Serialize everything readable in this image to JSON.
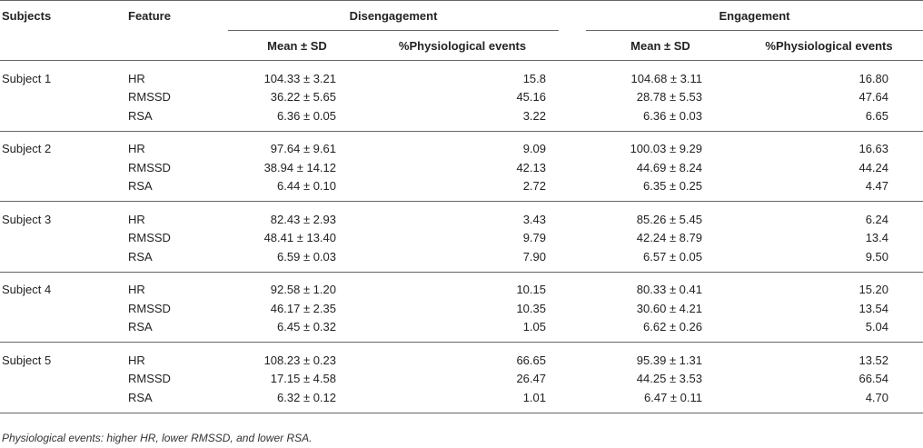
{
  "header": {
    "subjects": "Subjects",
    "feature": "Feature",
    "disengagement": "Disengagement",
    "engagement": "Engagement",
    "mean_sd": "Mean ± SD",
    "pct_events": "%Physiological events"
  },
  "groups": [
    {
      "subject": "Subject 1",
      "rows": [
        {
          "feature": "HR",
          "dis_mean": "104.33 ± 3.21",
          "dis_pct": "15.8",
          "eng_mean": "104.68 ± 3.11",
          "eng_pct": "16.80"
        },
        {
          "feature": "RMSSD",
          "dis_mean": "36.22 ± 5.65",
          "dis_pct": "45.16",
          "eng_mean": "28.78 ± 5.53",
          "eng_pct": "47.64"
        },
        {
          "feature": "RSA",
          "dis_mean": "6.36 ± 0.05",
          "dis_pct": "3.22",
          "eng_mean": "6.36 ± 0.03",
          "eng_pct": "6.65"
        }
      ]
    },
    {
      "subject": "Subject 2",
      "rows": [
        {
          "feature": "HR",
          "dis_mean": "97.64 ± 9.61",
          "dis_pct": "9.09",
          "eng_mean": "100.03 ± 9.29",
          "eng_pct": "16.63"
        },
        {
          "feature": "RMSSD",
          "dis_mean": "38.94 ± 14.12",
          "dis_pct": "42.13",
          "eng_mean": "44.69 ± 8.24",
          "eng_pct": "44.24"
        },
        {
          "feature": "RSA",
          "dis_mean": "6.44 ± 0.10",
          "dis_pct": "2.72",
          "eng_mean": "6.35 ± 0.25",
          "eng_pct": "4.47"
        }
      ]
    },
    {
      "subject": "Subject 3",
      "rows": [
        {
          "feature": "HR",
          "dis_mean": "82.43 ± 2.93",
          "dis_pct": "3.43",
          "eng_mean": "85.26 ± 5.45",
          "eng_pct": "6.24"
        },
        {
          "feature": "RMSSD",
          "dis_mean": "48.41 ± 13.40",
          "dis_pct": "9.79",
          "eng_mean": "42.24 ± 8.79",
          "eng_pct": "13.4"
        },
        {
          "feature": "RSA",
          "dis_mean": "6.59 ± 0.03",
          "dis_pct": "7.90",
          "eng_mean": "6.57 ± 0.05",
          "eng_pct": "9.50"
        }
      ]
    },
    {
      "subject": "Subject 4",
      "rows": [
        {
          "feature": "HR",
          "dis_mean": "92.58 ± 1.20",
          "dis_pct": "10.15",
          "eng_mean": "80.33 ± 0.41",
          "eng_pct": "15.20"
        },
        {
          "feature": "RMSSD",
          "dis_mean": "46.17 ± 2.35",
          "dis_pct": "10.35",
          "eng_mean": "30.60 ± 4.21",
          "eng_pct": "13.54"
        },
        {
          "feature": "RSA",
          "dis_mean": "6.45 ± 0.32",
          "dis_pct": "1.05",
          "eng_mean": "6.62 ± 0.26",
          "eng_pct": "5.04"
        }
      ]
    },
    {
      "subject": "Subject 5",
      "rows": [
        {
          "feature": "HR",
          "dis_mean": "108.23 ± 0.23",
          "dis_pct": "66.65",
          "eng_mean": "95.39 ± 1.31",
          "eng_pct": "13.52"
        },
        {
          "feature": "RMSSD",
          "dis_mean": "17.15 ± 4.58",
          "dis_pct": "26.47",
          "eng_mean": "44.25 ± 3.53",
          "eng_pct": "66.54"
        },
        {
          "feature": "RSA",
          "dis_mean": "6.32 ± 0.12",
          "dis_pct": "1.01",
          "eng_mean": "6.47 ± 0.11",
          "eng_pct": "4.70"
        }
      ]
    }
  ],
  "footnote": "Physiological events: higher HR, lower RMSSD, and lower RSA."
}
